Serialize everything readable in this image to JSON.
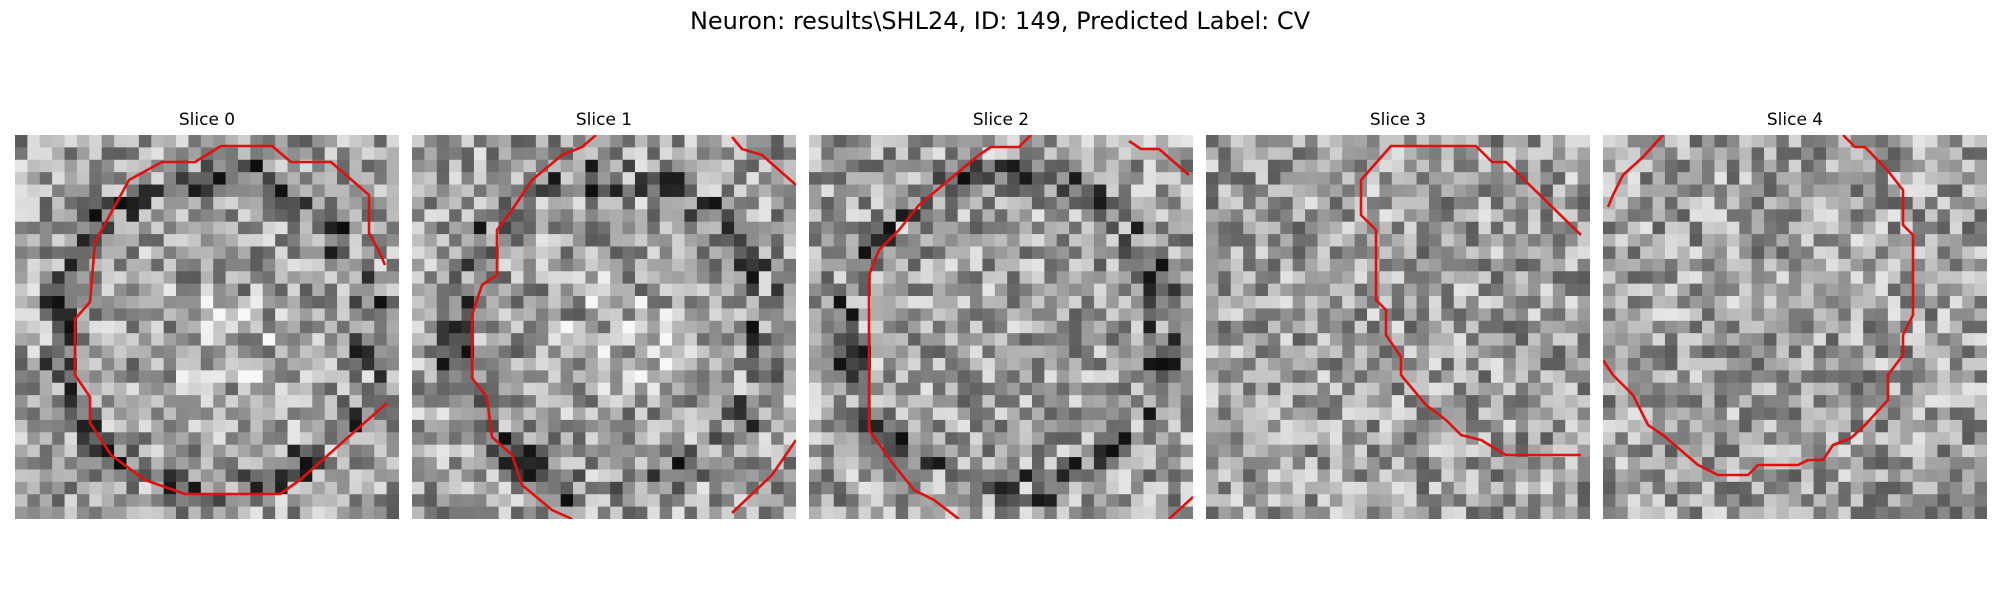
{
  "figure": {
    "title": "Neuron: results\\SHL24, ID: 149, Predicted Label: CV",
    "contour_color": "#e01010"
  },
  "panels": [
    {
      "title": "Slice 0",
      "seed": 11,
      "ring_seed": 3,
      "dark_ring": true,
      "bright_center": true
    },
    {
      "title": "Slice 1",
      "seed": 23,
      "ring_seed": 5,
      "dark_ring": true,
      "bright_center": true
    },
    {
      "title": "Slice 2",
      "seed": 37,
      "ring_seed": 7,
      "dark_ring": true,
      "bright_center": false
    },
    {
      "title": "Slice 3",
      "seed": 41,
      "ring_seed": 9,
      "dark_ring": false,
      "bright_center": false
    },
    {
      "title": "Slice 4",
      "seed": 53,
      "ring_seed": 13,
      "dark_ring": false,
      "bright_center": false
    }
  ]
}
